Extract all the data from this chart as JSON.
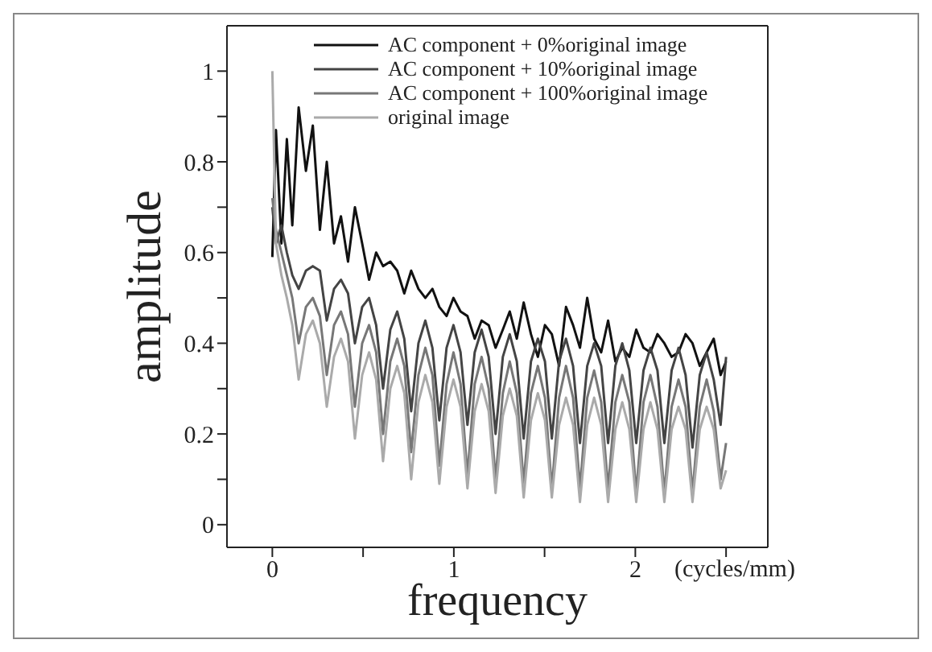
{
  "chart_data": {
    "type": "line",
    "xlabel": "frequency",
    "ylabel": "amplitude",
    "annotations": [
      "(cycles/mm)"
    ],
    "x": [
      0,
      0.02,
      0.05,
      0.08,
      0.11,
      0.145,
      0.185,
      0.223,
      0.262,
      0.3,
      0.34,
      0.378,
      0.417,
      0.455,
      0.495,
      0.533,
      0.572,
      0.61,
      0.65,
      0.688,
      0.727,
      0.765,
      0.805,
      0.843,
      0.882,
      0.92,
      0.96,
      0.998,
      1.037,
      1.075,
      1.115,
      1.153,
      1.192,
      1.23,
      1.27,
      1.308,
      1.347,
      1.385,
      1.425,
      1.463,
      1.502,
      1.54,
      1.58,
      1.618,
      1.657,
      1.695,
      1.735,
      1.773,
      1.812,
      1.85,
      1.89,
      1.928,
      1.967,
      2.005,
      2.045,
      2.083,
      2.122,
      2.16,
      2.2,
      2.238,
      2.277,
      2.315,
      2.355,
      2.393,
      2.432,
      2.47,
      2.5
    ],
    "series": [
      {
        "name": "AC component + 0%original image",
        "color": "#111111",
        "values": [
          0.59,
          0.87,
          0.62,
          0.85,
          0.66,
          0.92,
          0.78,
          0.88,
          0.65,
          0.8,
          0.62,
          0.68,
          0.58,
          0.7,
          0.62,
          0.54,
          0.6,
          0.57,
          0.58,
          0.56,
          0.51,
          0.56,
          0.52,
          0.5,
          0.52,
          0.48,
          0.46,
          0.5,
          0.47,
          0.46,
          0.41,
          0.45,
          0.44,
          0.39,
          0.43,
          0.47,
          0.41,
          0.49,
          0.42,
          0.37,
          0.44,
          0.42,
          0.35,
          0.48,
          0.44,
          0.39,
          0.5,
          0.41,
          0.38,
          0.45,
          0.36,
          0.39,
          0.37,
          0.43,
          0.39,
          0.38,
          0.42,
          0.4,
          0.37,
          0.38,
          0.42,
          0.4,
          0.35,
          0.38,
          0.41,
          0.33,
          0.36
        ]
      },
      {
        "name": "AC component + 10%original image",
        "color": "#444444",
        "values": [
          0.7,
          0.62,
          0.66,
          0.6,
          0.55,
          0.52,
          0.56,
          0.57,
          0.56,
          0.45,
          0.52,
          0.54,
          0.51,
          0.4,
          0.48,
          0.5,
          0.44,
          0.3,
          0.43,
          0.47,
          0.41,
          0.25,
          0.4,
          0.45,
          0.39,
          0.23,
          0.39,
          0.44,
          0.38,
          0.22,
          0.38,
          0.43,
          0.37,
          0.2,
          0.37,
          0.42,
          0.36,
          0.19,
          0.36,
          0.41,
          0.36,
          0.19,
          0.36,
          0.41,
          0.35,
          0.18,
          0.35,
          0.4,
          0.35,
          0.18,
          0.35,
          0.4,
          0.34,
          0.18,
          0.34,
          0.39,
          0.34,
          0.18,
          0.34,
          0.39,
          0.33,
          0.17,
          0.33,
          0.38,
          0.32,
          0.22,
          0.37
        ]
      },
      {
        "name": "AC component + 100%original image",
        "color": "#777777",
        "values": [
          0.72,
          0.65,
          0.6,
          0.55,
          0.5,
          0.4,
          0.48,
          0.5,
          0.46,
          0.33,
          0.44,
          0.47,
          0.42,
          0.26,
          0.4,
          0.44,
          0.38,
          0.2,
          0.36,
          0.41,
          0.35,
          0.16,
          0.33,
          0.39,
          0.33,
          0.13,
          0.31,
          0.38,
          0.31,
          0.11,
          0.31,
          0.37,
          0.3,
          0.1,
          0.29,
          0.36,
          0.29,
          0.09,
          0.29,
          0.35,
          0.28,
          0.08,
          0.28,
          0.35,
          0.28,
          0.08,
          0.28,
          0.34,
          0.27,
          0.08,
          0.27,
          0.33,
          0.27,
          0.07,
          0.27,
          0.33,
          0.26,
          0.07,
          0.26,
          0.32,
          0.26,
          0.07,
          0.26,
          0.32,
          0.25,
          0.1,
          0.18
        ]
      },
      {
        "name": "original image",
        "color": "#aaaaaa",
        "values": [
          1.0,
          0.62,
          0.55,
          0.5,
          0.44,
          0.32,
          0.42,
          0.45,
          0.4,
          0.26,
          0.37,
          0.41,
          0.36,
          0.19,
          0.33,
          0.38,
          0.32,
          0.14,
          0.3,
          0.35,
          0.29,
          0.1,
          0.27,
          0.33,
          0.27,
          0.09,
          0.26,
          0.32,
          0.26,
          0.08,
          0.25,
          0.31,
          0.25,
          0.07,
          0.24,
          0.3,
          0.24,
          0.06,
          0.23,
          0.29,
          0.23,
          0.06,
          0.22,
          0.28,
          0.22,
          0.05,
          0.22,
          0.28,
          0.22,
          0.05,
          0.21,
          0.27,
          0.21,
          0.05,
          0.21,
          0.27,
          0.21,
          0.05,
          0.21,
          0.26,
          0.21,
          0.05,
          0.21,
          0.26,
          0.21,
          0.08,
          0.12
        ]
      }
    ],
    "xlim": [
      -0.25,
      2.73
    ],
    "xticks": [
      0,
      {
        "value": 0.5,
        "label": null
      },
      1,
      {
        "value": 1.5,
        "label": null
      },
      2,
      {
        "value": 2.5,
        "label": null
      }
    ],
    "ylim": [
      -0.05,
      1.1
    ],
    "yticks": [
      0,
      {
        "value": 0.1,
        "label": null
      },
      0.2,
      {
        "value": 0.3,
        "label": null
      },
      0.4,
      {
        "value": 0.5,
        "label": null
      },
      0.6,
      {
        "value": 0.7,
        "label": null
      },
      0.8,
      {
        "value": 0.9,
        "label": null
      },
      1
    ],
    "legend": "top right",
    "line_style": "solid",
    "grid": false
  }
}
